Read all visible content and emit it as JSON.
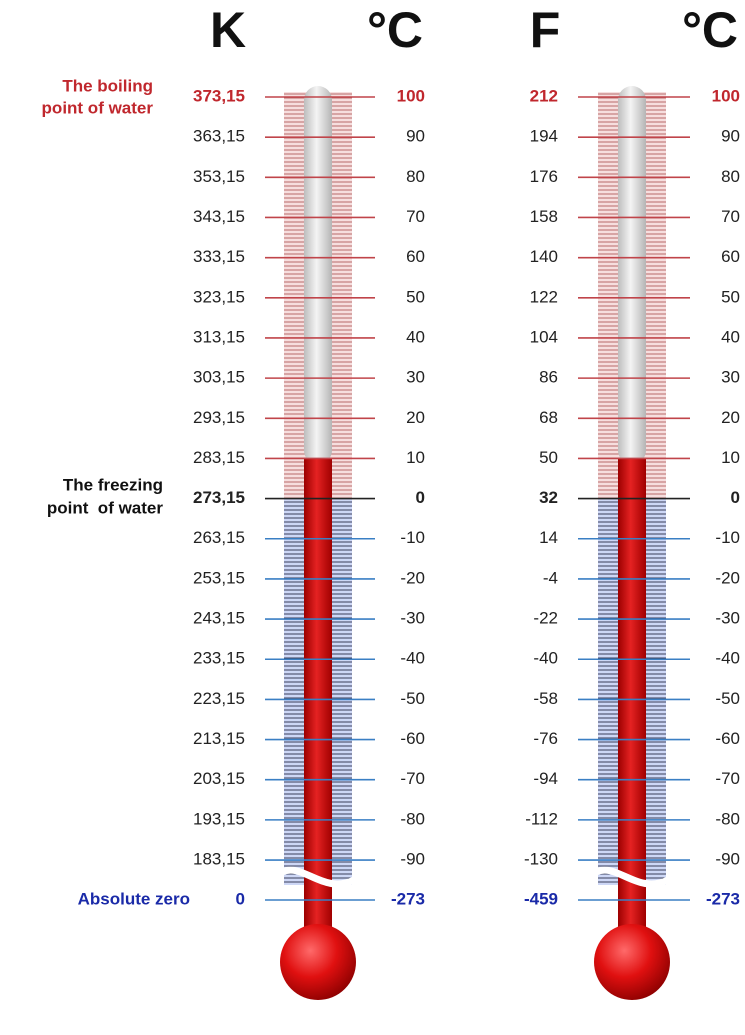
{
  "headers": [
    "K",
    "°C",
    "F",
    "°C"
  ],
  "annotations": {
    "boiling": [
      "The boiling",
      "point of water"
    ],
    "freezing": [
      "The freezing",
      "point  of water"
    ],
    "absolute_zero": "Absolute zero"
  },
  "scales": [
    [
      "373,15",
      "363,15",
      "353,15",
      "343,15",
      "333,15",
      "323,15",
      "313,15",
      "303,15",
      "293,15",
      "283,15",
      "273,15",
      "263,15",
      "253,15",
      "243,15",
      "233,15",
      "223,15",
      "213,15",
      "203,15",
      "193,15",
      "183,15",
      "0"
    ],
    [
      "100",
      "90",
      "80",
      "70",
      "60",
      "50",
      "40",
      "30",
      "20",
      "10",
      "0",
      "-10",
      "-20",
      "-30",
      "-40",
      "-50",
      "-60",
      "-70",
      "-80",
      "-90",
      "-273"
    ],
    [
      "212",
      "194",
      "176",
      "158",
      "140",
      "122",
      "104",
      "86",
      "68",
      "50",
      "32",
      "14",
      "-4",
      "-22",
      "-40",
      "-58",
      "-76",
      "-94",
      "-112",
      "-130",
      "-459"
    ],
    [
      "100",
      "90",
      "80",
      "70",
      "60",
      "50",
      "40",
      "30",
      "20",
      "10",
      "0",
      "-10",
      "-20",
      "-30",
      "-40",
      "-50",
      "-60",
      "-70",
      "-80",
      "-90",
      "-273"
    ]
  ]
}
